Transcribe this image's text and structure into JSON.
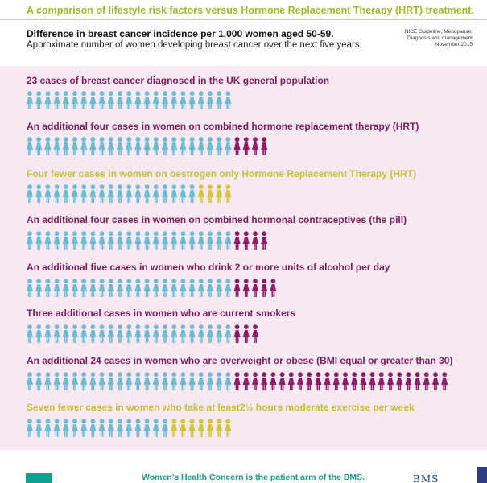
{
  "header": {
    "subtitle": "A comparison of lifestyle risk factors versus Hormone Replacement Therapy (HRT) treatment.",
    "heading": "Difference in breast cancer incidence per 1,000 women aged 50-59.",
    "description": "Approximate number of women developing breast cancer over the next five years.",
    "source_line1": "NICE Guideline, Menopause:",
    "source_line2": "Diagnosis and management",
    "source_line3": "November 2015"
  },
  "colors": {
    "base": "#6cbcd3",
    "additional": "#8b1d6a",
    "fewer": "#cfc63e",
    "panel": "#f8e8f1",
    "accent_green": "#9fb92b"
  },
  "chart_data": {
    "type": "pictogram",
    "unit": "one figure = one case of breast cancer per 1,000 women",
    "rows": [
      {
        "label": "23 cases of breast cancer diagnosed in the  UK general population",
        "total": 23,
        "change": 0,
        "kind": "base"
      },
      {
        "label": "An additional four cases in women on combined hormone replacement therapy (HRT)",
        "total": 27,
        "change": 4,
        "kind": "additional"
      },
      {
        "label": "Four fewer  cases in women on oestrogen only Hormone Replacement Therapy (HRT)",
        "total": 23,
        "change": -4,
        "kind": "fewer"
      },
      {
        "label": "An additional four cases in women on combined hormonal contraceptives (the pill)",
        "total": 27,
        "change": 4,
        "kind": "additional"
      },
      {
        "label": "An additional five cases in women who drink 2 or more units of alcohol per day",
        "total": 28,
        "change": 5,
        "kind": "additional"
      },
      {
        "label": "Three additional cases in women who are current smokers",
        "total": 26,
        "change": 3,
        "kind": "additional"
      },
      {
        "label": "An additional 24 cases in women who are overweight or obese (BMI equal or greater than 30)",
        "total": 47,
        "change": 24,
        "kind": "additional"
      },
      {
        "label": "Seven fewer cases in women who take at least2½ hours moderate exercise per week",
        "total": 23,
        "change": -7,
        "kind": "fewer"
      }
    ]
  },
  "footer": {
    "text": "Women's Health Concern is the patient arm of the BMS.",
    "logo": "BMS"
  }
}
